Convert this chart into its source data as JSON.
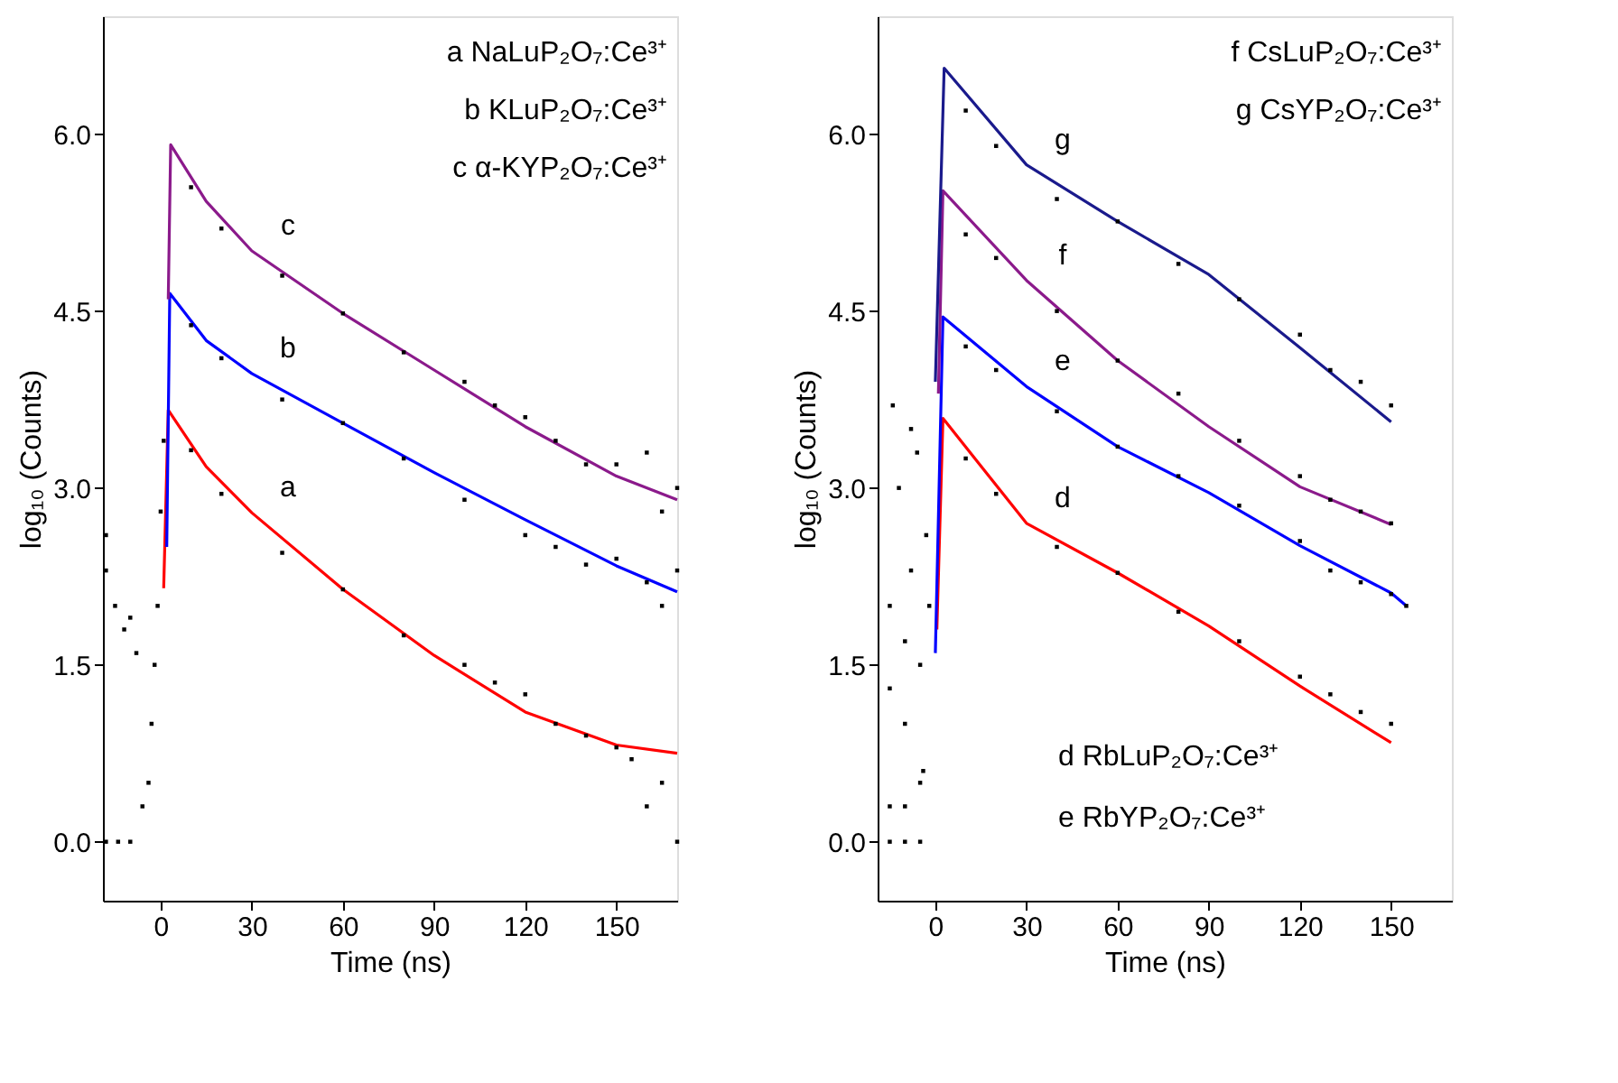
{
  "chart_data": [
    {
      "type": "scatter",
      "xlabel": "Time (ns)",
      "ylabel": "log₁₀ (Counts)",
      "xlim": [
        -19,
        170
      ],
      "ylim": [
        -0.5,
        7.0
      ],
      "xticks": [
        0,
        30,
        60,
        90,
        120,
        150
      ],
      "yticks": [
        {
          "value": 0,
          "label": "0.0"
        },
        {
          "value": 1.5,
          "label": "1.5"
        },
        {
          "value": 3,
          "label": "3.0"
        },
        {
          "value": 4.5,
          "label": "4.5"
        },
        {
          "value": 6,
          "label": "6.0"
        }
      ],
      "grid": false,
      "series": [
        {
          "color": "#000000",
          "marker": "square",
          "x": [
            -18,
            -14,
            -10,
            -18,
            -15,
            -12,
            -8,
            -6,
            -4,
            -3,
            -2,
            -1,
            0,
            1,
            -18,
            -10,
            10,
            20,
            40,
            60,
            80,
            100,
            110,
            120,
            130,
            140,
            150,
            155,
            160,
            165,
            170,
            10,
            20,
            40,
            60,
            80,
            100,
            120,
            130,
            140,
            150,
            160,
            165,
            170,
            10,
            20,
            40,
            60,
            80,
            100,
            110,
            120,
            130,
            140,
            150,
            160,
            165,
            170
          ],
          "values": [
            0.0,
            0.0,
            0.0,
            2.3,
            2.0,
            1.8,
            1.6,
            0.3,
            0.5,
            1.0,
            1.5,
            2.0,
            2.8,
            3.4,
            2.6,
            1.9,
            3.32,
            2.95,
            2.45,
            2.14,
            1.75,
            1.5,
            1.35,
            1.25,
            1.0,
            0.9,
            0.8,
            0.7,
            0.3,
            0.5,
            0.0,
            4.38,
            4.1,
            3.75,
            3.55,
            3.25,
            2.9,
            2.6,
            2.5,
            2.35,
            2.4,
            2.2,
            2.0,
            2.3,
            5.55,
            5.2,
            4.8,
            4.48,
            4.15,
            3.9,
            3.7,
            3.6,
            3.4,
            3.2,
            3.2,
            3.3,
            2.8,
            3.0
          ]
        },
        {
          "type": "line",
          "name": "a",
          "marker": "none",
          "line_style": "solid",
          "color": "#ff0000",
          "x": [
            1,
            2.5,
            15,
            30,
            60,
            90,
            120,
            150,
            170
          ],
          "values": [
            2.15,
            3.66,
            3.18,
            2.79,
            2.14,
            1.58,
            1.1,
            0.82,
            0.75
          ]
        },
        {
          "type": "line",
          "name": "b",
          "marker": "none",
          "line_style": "solid",
          "color": "#0000ff",
          "x": [
            2,
            3,
            15,
            30,
            60,
            90,
            120,
            150,
            170
          ],
          "values": [
            2.5,
            4.65,
            4.25,
            3.97,
            3.55,
            3.13,
            2.73,
            2.34,
            2.12
          ]
        },
        {
          "type": "line",
          "name": "c",
          "marker": "none",
          "line_style": "solid",
          "color": "#8b1a8b",
          "x": [
            2.5,
            3.3,
            15,
            30,
            60,
            90,
            120,
            150,
            170
          ],
          "values": [
            4.6,
            5.91,
            5.43,
            5.01,
            4.48,
            4.0,
            3.52,
            3.1,
            2.9
          ]
        }
      ],
      "annotations": [
        "a NaLuP₂O₇:Ce³⁺",
        "b KLuP₂O₇:Ce³⁺",
        "c α-KYP₂O₇:Ce³⁺"
      ]
    },
    {
      "type": "scatter",
      "xlabel": "Time (ns)",
      "ylabel": "log₁₀ (Counts)",
      "xlim": [
        -19,
        170
      ],
      "ylim": [
        -0.5,
        7.0
      ],
      "xticks": [
        0,
        30,
        60,
        90,
        120,
        150
      ],
      "yticks": [
        {
          "value": 0,
          "label": "0.0"
        },
        {
          "value": 1.5,
          "label": "1.5"
        },
        {
          "value": 3,
          "label": "3.0"
        },
        {
          "value": 4.5,
          "label": "4.5"
        },
        {
          "value": 6,
          "label": "6.0"
        }
      ],
      "grid": false,
      "series": [
        {
          "color": "#000000",
          "marker": "square",
          "x": [
            -15,
            -10,
            -5,
            -15,
            -10,
            -5,
            -15,
            -10,
            -5,
            -15,
            -8,
            -3,
            -12,
            -6,
            -14,
            -8,
            -2,
            -10,
            -4,
            10,
            20,
            40,
            60,
            80,
            100,
            120,
            130,
            140,
            150,
            10,
            20,
            40,
            60,
            80,
            100,
            120,
            130,
            140,
            150,
            10,
            20,
            40,
            60,
            80,
            100,
            120,
            130,
            140,
            150,
            155,
            10,
            20,
            40,
            60,
            80,
            100,
            120,
            130,
            140,
            150
          ],
          "values": [
            0.0,
            0.0,
            0.0,
            0.3,
            0.3,
            0.5,
            1.3,
            1.0,
            1.5,
            2.0,
            2.3,
            2.6,
            3.0,
            3.3,
            3.7,
            3.5,
            2.0,
            1.7,
            0.6,
            6.2,
            5.9,
            5.45,
            5.26,
            4.9,
            4.6,
            4.3,
            4.0,
            3.9,
            3.7,
            5.15,
            4.95,
            4.5,
            4.08,
            3.8,
            3.4,
            3.1,
            2.9,
            2.8,
            2.7,
            4.2,
            4.0,
            3.65,
            3.35,
            3.1,
            2.85,
            2.55,
            2.3,
            2.2,
            2.1,
            2.0,
            3.25,
            2.95,
            2.5,
            2.28,
            1.95,
            1.7,
            1.4,
            1.25,
            1.1,
            1.0
          ]
        },
        {
          "type": "line",
          "name": "d",
          "marker": "none",
          "line_style": "solid",
          "color": "#ff0000",
          "x": [
            0.5,
            2.5,
            30,
            60,
            90,
            120,
            150
          ],
          "values": [
            1.8,
            3.59,
            2.7,
            2.28,
            1.83,
            1.32,
            0.84
          ]
        },
        {
          "type": "line",
          "name": "e",
          "marker": "none",
          "line_style": "solid",
          "color": "#0000ff",
          "x": [
            0,
            2.5,
            30,
            60,
            90,
            120,
            150,
            155
          ],
          "values": [
            1.6,
            4.45,
            3.86,
            3.35,
            2.96,
            2.51,
            2.11,
            2.0
          ]
        },
        {
          "type": "line",
          "name": "f",
          "marker": "none",
          "line_style": "solid",
          "color": "#8b1a8b",
          "x": [
            1,
            2.5,
            30,
            60,
            90,
            120,
            150
          ],
          "values": [
            3.8,
            5.52,
            4.76,
            4.08,
            3.52,
            3.01,
            2.69
          ]
        },
        {
          "type": "line",
          "name": "g",
          "marker": "none",
          "line_style": "solid",
          "color": "#1a1a8c",
          "x": [
            0,
            2.9,
            30,
            60,
            90,
            120,
            150
          ],
          "values": [
            3.9,
            6.56,
            5.74,
            5.26,
            4.81,
            4.19,
            3.56
          ]
        }
      ],
      "annotations": [
        "f CsLuP₂O₇:Ce³⁺",
        "g CsYP₂O₇:Ce³⁺",
        "d RbLuP₂O₇:Ce³⁺",
        "e RbYP₂O₇:Ce³⁺"
      ]
    }
  ]
}
